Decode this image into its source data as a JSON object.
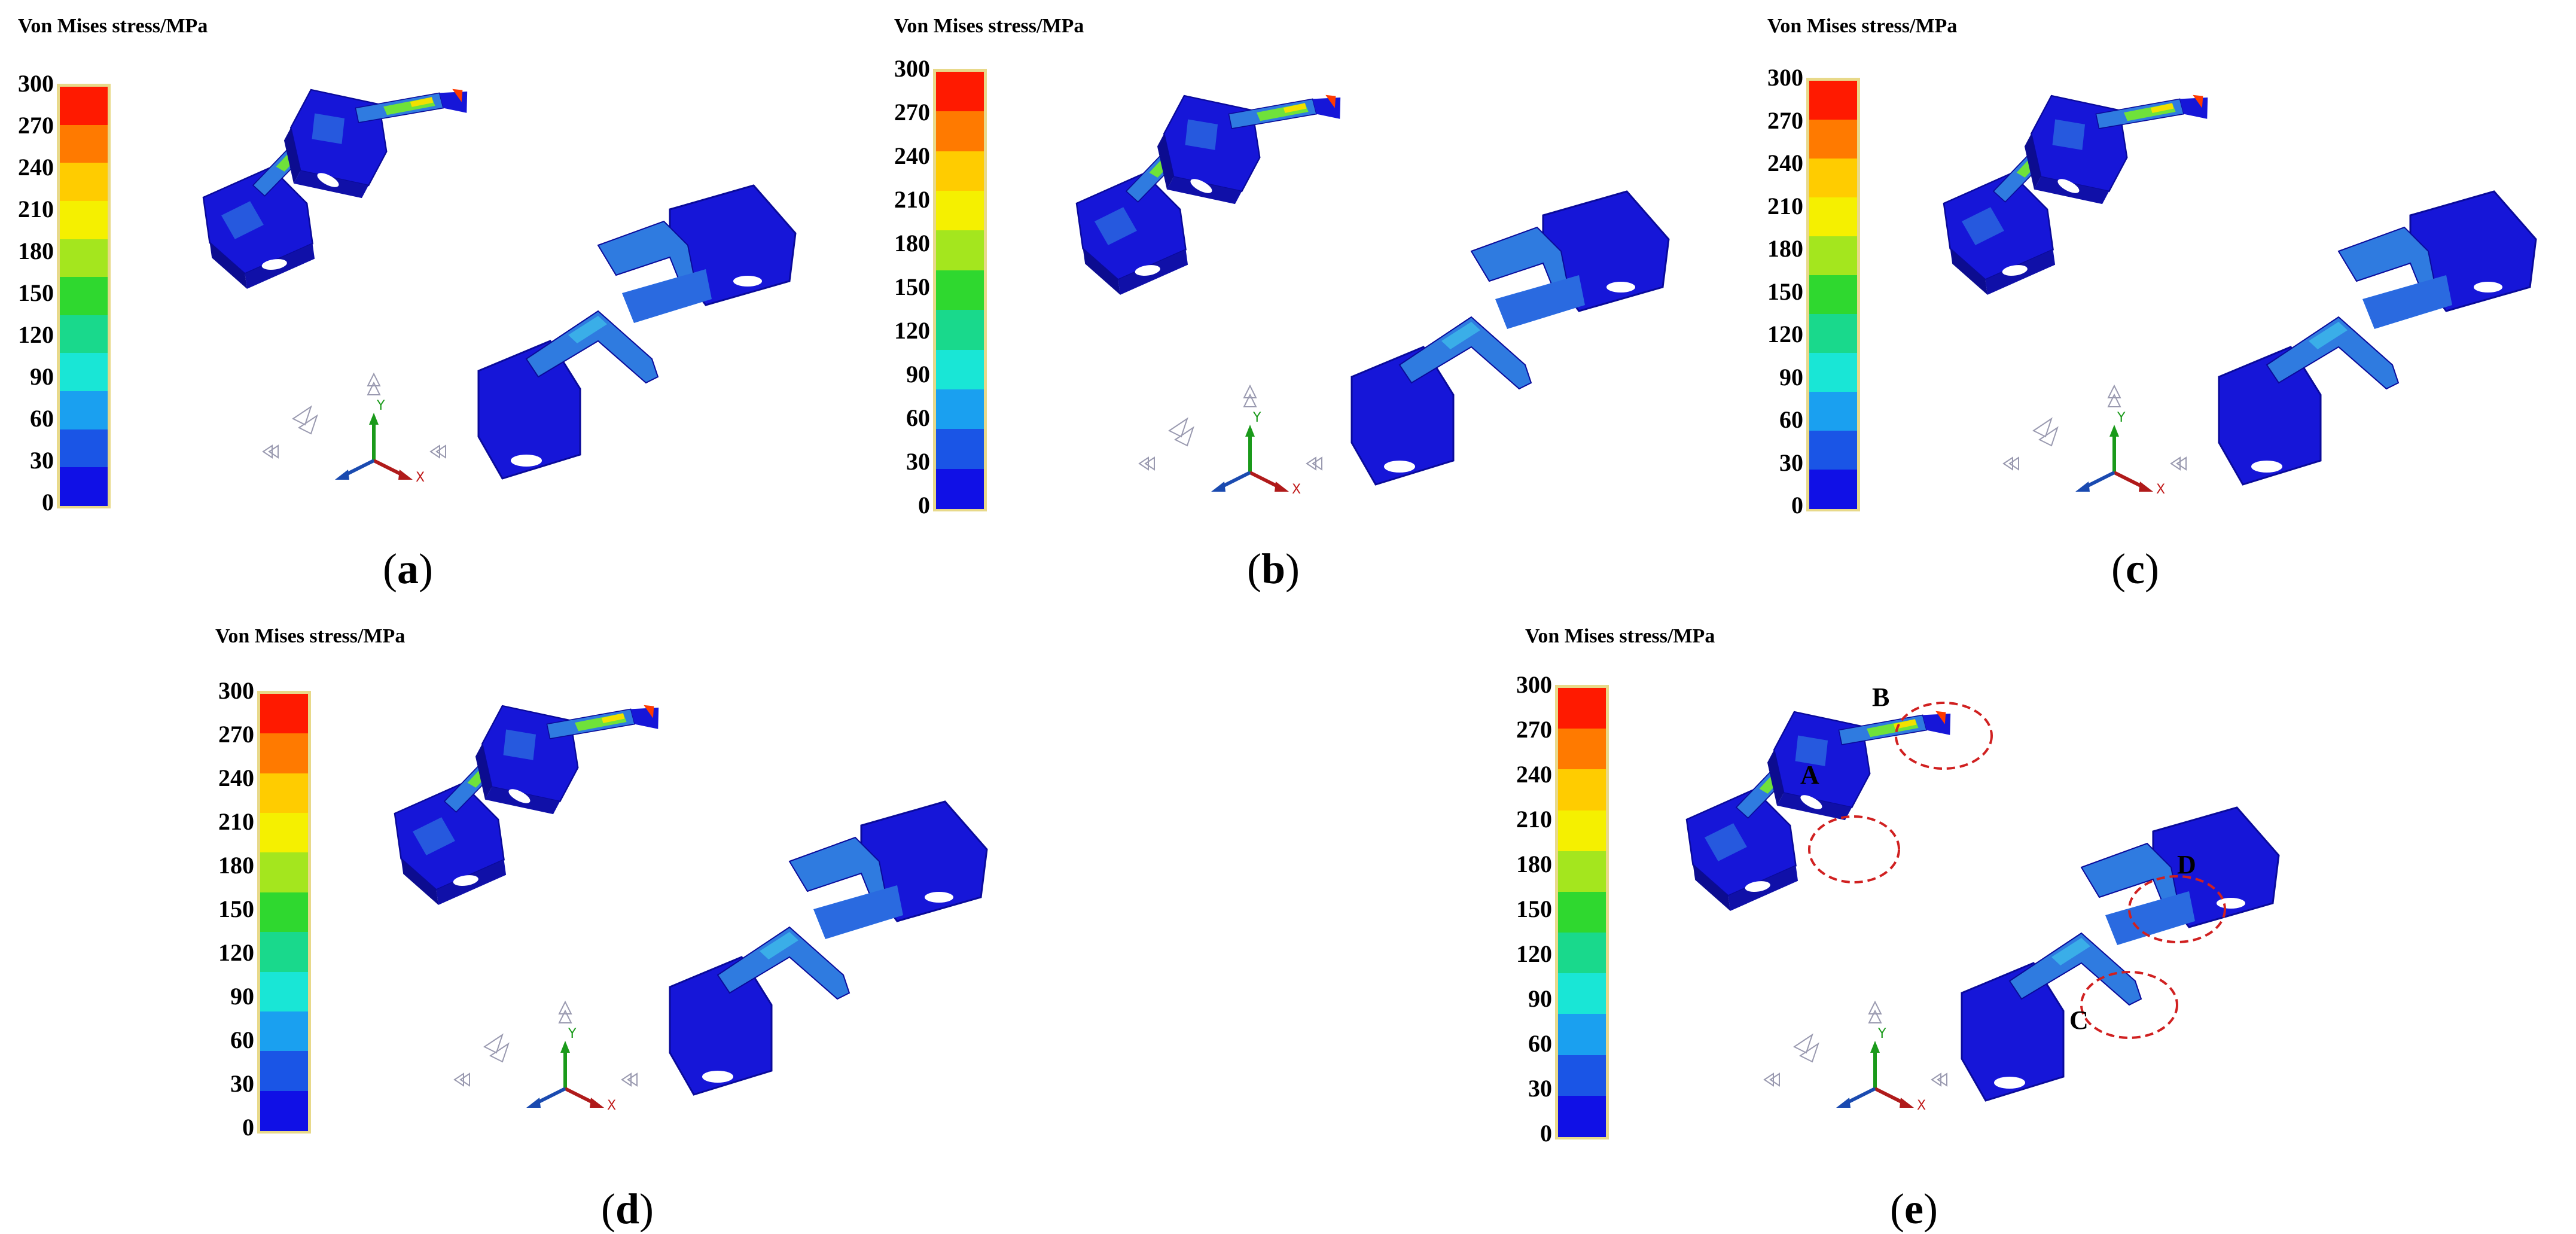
{
  "colorbar": {
    "title": "Von Mises stress/MPa",
    "ticks": [
      "300",
      "270",
      "240",
      "210",
      "180",
      "150",
      "120",
      "90",
      "60",
      "30",
      "0"
    ],
    "colors": [
      "#ff1a00",
      "#ff7a00",
      "#ffcc00",
      "#f5f000",
      "#a4e61e",
      "#2fd82f",
      "#19d98c",
      "#19e6d6",
      "#1aa0f0",
      "#1a55e6",
      "#1010e6"
    ]
  },
  "panels": [
    {
      "label": "a"
    },
    {
      "label": "b"
    },
    {
      "label": "c"
    },
    {
      "label": "d"
    },
    {
      "label": "e"
    }
  ],
  "callouts": [
    "A",
    "B",
    "C",
    "D"
  ],
  "axis_labels": {
    "y": "Y",
    "x": "X"
  }
}
